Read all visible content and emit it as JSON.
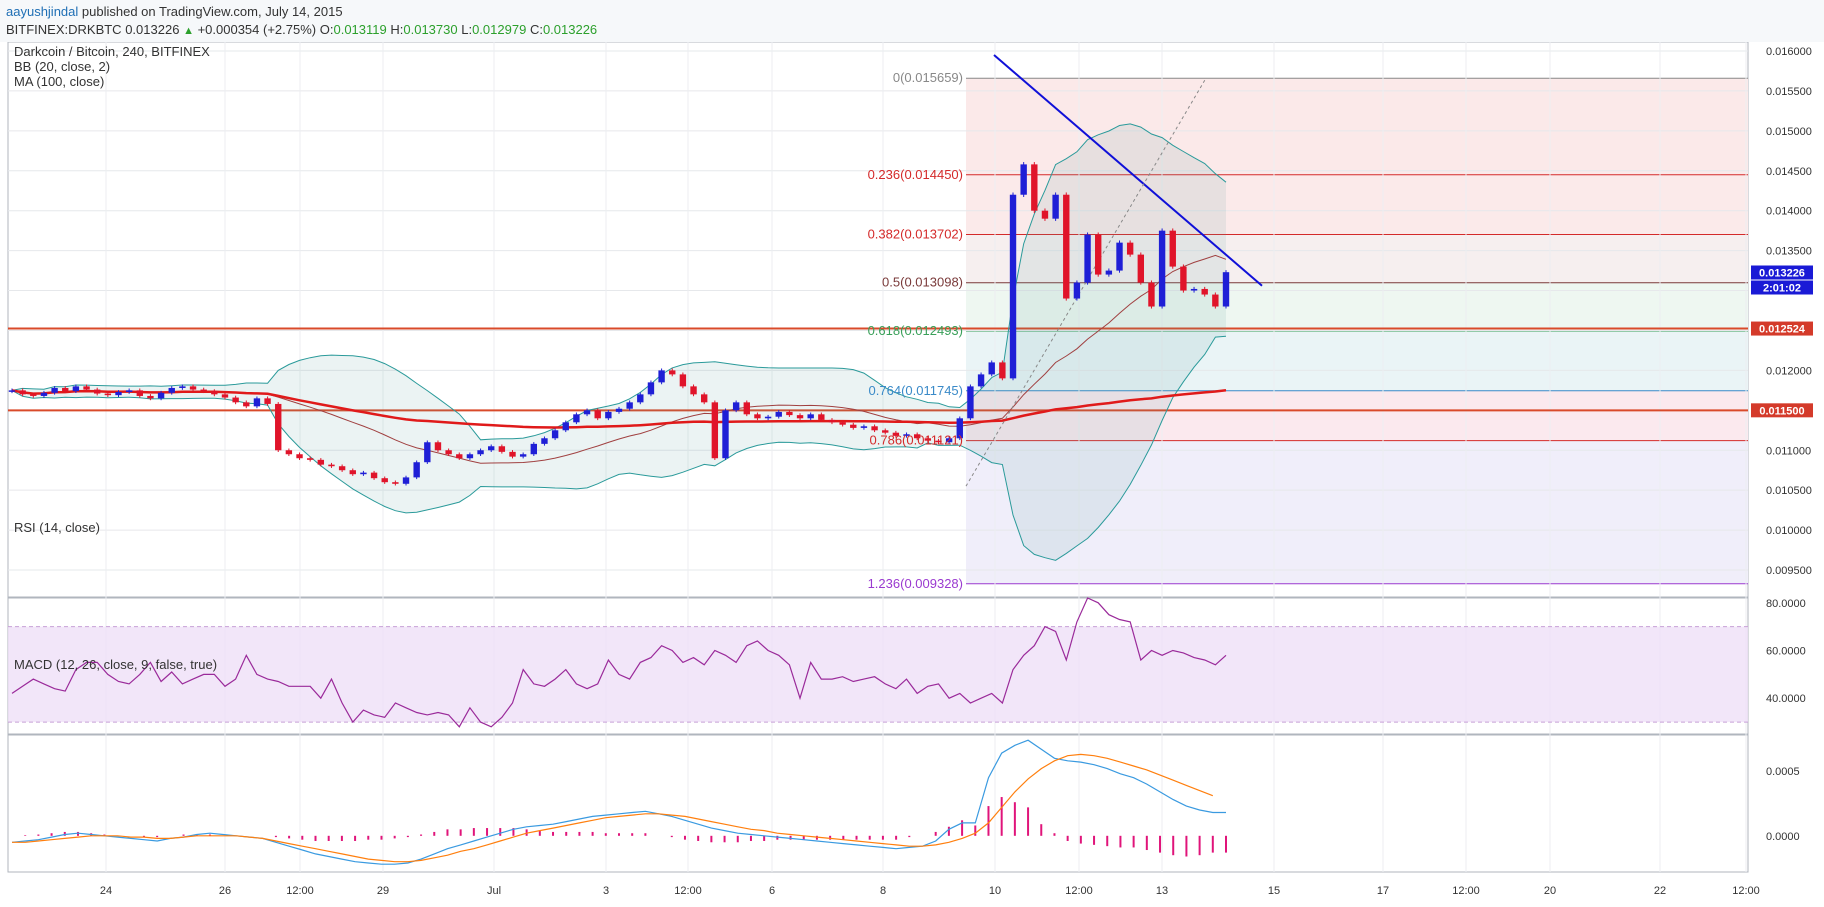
{
  "header": {
    "author": "aayushjindal",
    "published": " published on TradingView.com, July 14, 2015",
    "symbol": "BITFINEX:DRKBTC",
    "last": "0.013226",
    "change_arrow": "▲",
    "change": "+0.000354 (+2.75%)",
    "o_label": "O:",
    "o": "0.013119",
    "h_label": "H:",
    "h": "0.013730",
    "l_label": "L:",
    "l": "0.012979",
    "c_label": "C:",
    "c": "0.013226"
  },
  "colors": {
    "up": "#1f1fd6",
    "down": "#e0142a",
    "bb": "#2a9a9a",
    "ma": "#e01a1a",
    "rsi": "#9a2a9a",
    "macd": "#3a9ae0",
    "signal": "#ff7f0e",
    "hist": "#e0147a",
    "trendline": "#1010d8"
  },
  "chart_data": [
    {
      "type": "candlestick",
      "title": "Darkcoin / Bitcoin, 240, BITFINEX",
      "indicators": [
        "BB (20, close, 2)",
        "MA (100, close)"
      ],
      "ylim": [
        0.0093,
        0.0161
      ],
      "yticks": [
        "0.016000",
        "0.015500",
        "0.015000",
        "0.014500",
        "0.014000",
        "0.013500",
        "0.013000",
        "0.012500",
        "0.012000",
        "0.011500",
        "0.011000",
        "0.010500",
        "0.010000",
        "0.009500"
      ],
      "x_labels": [
        "24",
        "26",
        "12:00",
        "29",
        "Jul",
        "3",
        "12:00",
        "6",
        "8",
        "10",
        "12:00",
        "13",
        "15",
        "17",
        "12:00",
        "20",
        "22",
        "12:00"
      ],
      "fib_levels": [
        {
          "label": "0(0.015659)",
          "value": 0.015659,
          "color": "#888888"
        },
        {
          "label": "0.236(0.014450)",
          "value": 0.01445,
          "color": "#d42a2a"
        },
        {
          "label": "0.382(0.013702)",
          "value": 0.013702,
          "color": "#d42a2a"
        },
        {
          "label": "0.5(0.013098)",
          "value": 0.013098,
          "color": "#7a3a3a"
        },
        {
          "label": "0.618(0.012493)",
          "value": 0.012493,
          "color": "#3aa05a"
        },
        {
          "label": "0.764(0.011745)",
          "value": 0.011745,
          "color": "#3a8ac8"
        },
        {
          "label": "0.786(0.011121)",
          "value": 0.011121,
          "color": "#d42a2a"
        },
        {
          "label": "1.236(0.009328)",
          "value": 0.009328,
          "color": "#9a3ad0"
        }
      ],
      "horizontal_lines": [
        {
          "label": "0.012524",
          "value": 0.012524
        },
        {
          "label": "0.011500",
          "value": 0.0115
        }
      ],
      "last_price_tag": "0.013226",
      "countdown_tag": "2:01:02",
      "closes": [
        0.01175,
        0.0117,
        0.01168,
        0.01172,
        0.01178,
        0.01174,
        0.0118,
        0.01176,
        0.01171,
        0.01169,
        0.01173,
        0.01175,
        0.01168,
        0.01165,
        0.01172,
        0.01178,
        0.0118,
        0.01176,
        0.01174,
        0.0117,
        0.01166,
        0.0116,
        0.01155,
        0.01165,
        0.01158,
        0.011,
        0.01095,
        0.0109,
        0.01088,
        0.01082,
        0.0108,
        0.01075,
        0.0107,
        0.01072,
        0.01065,
        0.0106,
        0.01058,
        0.01066,
        0.01085,
        0.0111,
        0.011,
        0.01095,
        0.0109,
        0.01095,
        0.011,
        0.01105,
        0.01098,
        0.01092,
        0.01095,
        0.01108,
        0.01115,
        0.01125,
        0.01135,
        0.01145,
        0.0115,
        0.0114,
        0.01148,
        0.01152,
        0.0116,
        0.0117,
        0.01185,
        0.012,
        0.01195,
        0.0118,
        0.0117,
        0.0116,
        0.0109,
        0.0115,
        0.0116,
        0.01145,
        0.0114,
        0.01142,
        0.01148,
        0.01144,
        0.0114,
        0.01145,
        0.01138,
        0.01135,
        0.01132,
        0.01128,
        0.0113,
        0.01125,
        0.01122,
        0.01118,
        0.0112,
        0.01115,
        0.01112,
        0.0111,
        0.01115,
        0.0114,
        0.0118,
        0.01195,
        0.0121,
        0.0119,
        0.0142,
        0.01458,
        0.014,
        0.0139,
        0.0142,
        0.0129,
        0.0131,
        0.0137,
        0.0132,
        0.01325,
        0.0136,
        0.01345,
        0.0131,
        0.0128,
        0.01375,
        0.0133,
        0.013,
        0.01302,
        0.01295,
        0.0128,
        0.01323
      ]
    },
    {
      "type": "line",
      "title": "RSI (14, close)",
      "ylim": [
        25,
        82
      ],
      "yticks": [
        "80.0000",
        "60.0000",
        "40.0000"
      ],
      "values": [
        42,
        45,
        48,
        46,
        44,
        43,
        52,
        55,
        55,
        50,
        47,
        46,
        50,
        55,
        47,
        51,
        46,
        48,
        50,
        50,
        45,
        48,
        58,
        50,
        48,
        47,
        45,
        45,
        45,
        40,
        48,
        38,
        30,
        35,
        33,
        32,
        38,
        36,
        34,
        33,
        34,
        33,
        28,
        36,
        30,
        28,
        32,
        38,
        52,
        46,
        45,
        48,
        52,
        46,
        44,
        46,
        56,
        50,
        48,
        55,
        57,
        62,
        60,
        55,
        57,
        54,
        60,
        58,
        55,
        62,
        64,
        60,
        58,
        54,
        40,
        55,
        48,
        48,
        49,
        47,
        48,
        49,
        46,
        44,
        48,
        42,
        45,
        46,
        40,
        42,
        38,
        40,
        42,
        38,
        52,
        58,
        62,
        70,
        68,
        56,
        72,
        82,
        80,
        75,
        73,
        72,
        56,
        60,
        58,
        60,
        59,
        57,
        56,
        54,
        58
      ]
    },
    {
      "type": "line",
      "title": "MACD (12, 26, close, 9, false, true)",
      "ylim": [
        -0.00028,
        0.00078
      ],
      "yticks": [
        "0.0005",
        "0.0000"
      ],
      "series": [
        {
          "values": [
            -5e-05,
            -4e-05,
            -3e-05,
            -1e-05,
            1e-05,
            2e-05,
            1e-05,
            0.0,
            -1e-05,
            -2e-05,
            -3e-05,
            -4e-05,
            -2e-05,
            -1e-05,
            1e-05,
            2e-05,
            1e-05,
            0.0,
            -1e-05,
            -2e-05,
            -5e-05,
            -8e-05,
            -0.00011,
            -0.00014,
            -0.00016,
            -0.00018,
            -0.0002,
            -0.00021,
            -0.00022,
            -0.00022,
            -0.00021,
            -0.00018,
            -0.00014,
            -0.0001,
            -7e-05,
            -4e-05,
            -1e-05,
            2e-05,
            5e-05,
            7e-05,
            8e-05,
            9e-05,
            0.00011,
            0.00013,
            0.00015,
            0.00016,
            0.00017,
            0.00018,
            0.00019,
            0.00017,
            0.00015,
            0.00012,
            9e-05,
            6e-05,
            4e-05,
            2e-05,
            1e-05,
            0.0,
            -1e-05,
            -2e-05,
            -3e-05,
            -4e-05,
            -5e-05,
            -6e-05,
            -7e-05,
            -8e-05,
            -9e-05,
            -0.0001,
            -9e-05,
            -8e-05,
            -4e-05,
            5e-05,
            0.0001,
            0.0001,
            0.00045,
            0.00064,
            0.0007,
            0.00074,
            0.00067,
            0.0006,
            0.00058,
            0.00057,
            0.00055,
            0.00052,
            0.00048,
            0.00045,
            0.0004,
            0.00034,
            0.00028,
            0.00023,
            0.0002,
            0.00018,
            0.00018
          ]
        },
        {
          "values": [
            -5e-05,
            -5e-05,
            -4e-05,
            -3e-05,
            -2e-05,
            -1e-05,
            0.0,
            0.0,
            0.0,
            -1e-05,
            -1e-05,
            -2e-05,
            -2e-05,
            -1e-05,
            0.0,
            0.0,
            0.0,
            0.0,
            -1e-05,
            -2e-05,
            -4e-05,
            -6e-05,
            -8e-05,
            -0.0001,
            -0.00012,
            -0.00014,
            -0.00016,
            -0.00018,
            -0.00019,
            -0.0002,
            -0.0002,
            -0.00019,
            -0.00017,
            -0.00015,
            -0.00012,
            -0.0001,
            -7e-05,
            -4e-05,
            -1e-05,
            2e-05,
            4e-05,
            6e-05,
            8e-05,
            0.0001,
            0.00012,
            0.00014,
            0.00015,
            0.00016,
            0.00017,
            0.00017,
            0.00016,
            0.00015,
            0.00013,
            0.00011,
            9e-05,
            7e-05,
            5e-05,
            4e-05,
            2e-05,
            1e-05,
            0.0,
            -1e-05,
            -2e-05,
            -3e-05,
            -4e-05,
            -5e-05,
            -6e-05,
            -7e-05,
            -8e-05,
            -8e-05,
            -7e-05,
            -5e-05,
            -2e-05,
            2e-05,
            0.0001,
            0.00022,
            0.00034,
            0.00044,
            0.00052,
            0.00058,
            0.00062,
            0.00063,
            0.00062,
            0.0006,
            0.00057,
            0.00054,
            0.00051,
            0.00047,
            0.00043,
            0.00039,
            0.00035,
            0.00031
          ]
        },
        {
          "values": [
            0.0,
            5e-06,
            1e-05,
            2e-05,
            3e-05,
            3e-05,
            2e-05,
            1e-05,
            0.0,
            0.0,
            -1e-05,
            -1e-05,
            0.0,
            1e-05,
            1e-05,
            1e-05,
            0.0,
            0.0,
            0.0,
            0.0,
            -1e-05,
            -2e-05,
            -3e-05,
            -4e-05,
            -4e-05,
            -4e-05,
            -4e-05,
            -3e-05,
            -3e-05,
            -2e-05,
            -1e-05,
            1e-05,
            3e-05,
            5e-05,
            5e-05,
            6e-05,
            6e-05,
            6e-05,
            6e-05,
            5e-05,
            4e-05,
            3e-05,
            3e-05,
            3e-05,
            3e-05,
            2e-05,
            2e-05,
            2e-05,
            2e-05,
            0.0,
            -1e-05,
            -3e-05,
            -4e-05,
            -5e-05,
            -5e-05,
            -5e-05,
            -4e-05,
            -4e-05,
            -3e-05,
            -3e-05,
            -3e-05,
            -3e-05,
            -3e-05,
            -3e-05,
            -3e-05,
            -3e-05,
            -3e-05,
            -3e-05,
            -1e-05,
            0.0,
            3e-05,
            7e-05,
            0.00012,
            8e-05,
            0.00023,
            0.0003,
            0.00026,
            0.00022,
            9e-05,
            2e-05,
            -4e-05,
            -6e-05,
            -7e-05,
            -8e-05,
            -9e-05,
            -9e-05,
            -0.00011,
            -0.00013,
            -0.00015,
            -0.00016,
            -0.00015,
            -0.00013,
            -0.00013
          ]
        }
      ]
    }
  ]
}
